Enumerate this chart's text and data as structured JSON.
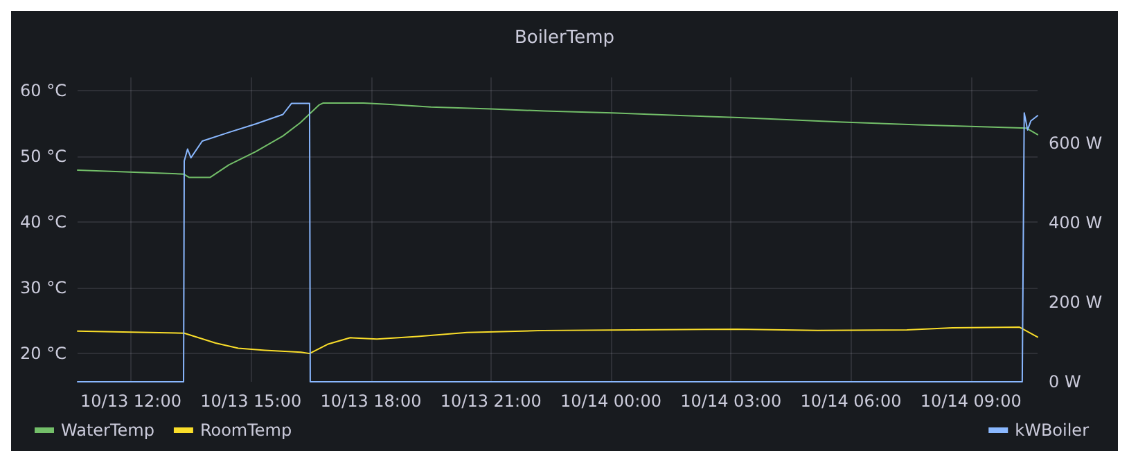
{
  "chart_data": {
    "type": "line",
    "title": "BoilerTemp",
    "xlim": [
      "--10-13T10:40",
      "--10-14T10:40"
    ],
    "xticks": [
      {
        "value": "--10-13T12:00",
        "label": "10/13 12:00"
      },
      {
        "value": "--10-13T15:00",
        "label": "10/13 15:00"
      },
      {
        "value": "--10-13T18:00",
        "label": "10/13 18:00"
      },
      {
        "value": "--10-13T21:00",
        "label": "10/13 21:00"
      },
      {
        "value": "--10-14T00:00",
        "label": "10/14 00:00"
      },
      {
        "value": "--10-14T03:00",
        "label": "10/14 03:00"
      },
      {
        "value": "--10-14T06:00",
        "label": "10/14 06:00"
      },
      {
        "value": "--10-14T09:00",
        "label": "10/14 09:00"
      }
    ],
    "ylim": [
      15.7,
      62
    ],
    "yticks": [
      {
        "value": 20,
        "label": "20 °C"
      },
      {
        "value": 30,
        "label": "30 °C"
      },
      {
        "value": 40,
        "label": "40 °C"
      },
      {
        "value": 50,
        "label": "50 °C"
      },
      {
        "value": 60,
        "label": "60 °C"
      }
    ],
    "y2lim": [
      0,
      765
    ],
    "y2ticks": [
      {
        "value": 0,
        "label": "0 W"
      },
      {
        "value": 200,
        "label": "200 W"
      },
      {
        "value": 400,
        "label": "400 W"
      },
      {
        "value": 600,
        "label": "600 W"
      }
    ],
    "grid": true,
    "legend": "bottom",
    "marker": "none",
    "line_style": "solid",
    "series": [
      {
        "name": "WaterTemp",
        "color": "#73bf69",
        "x": [
          "--10-13T10:40",
          "--10-13T12:26",
          "--10-13T13:19",
          "--10-13T13:27",
          "--10-13T13:59",
          "--10-13T14:27",
          "--10-13T15:07",
          "--10-13T15:48",
          "--10-13T16:14",
          "--10-13T16:42",
          "--10-13T16:48",
          "--10-13T17:49",
          "--10-13T18:29",
          "--10-13T19:30",
          "--10-13T21:00",
          "--10-13T22:21",
          "--10-14T00:02",
          "--10-14T01:44",
          "--10-14T03:12",
          "--10-14T05:47",
          "--10-14T07:41",
          "--10-14T09:16",
          "--10-14T10:23",
          "--10-14T10:40"
        ],
        "values": [
          47.9,
          47.5,
          47.3,
          46.8,
          46.8,
          48.7,
          50.7,
          53.1,
          55.1,
          57.8,
          58.1,
          58.1,
          57.9,
          57.5,
          57.2,
          56.9,
          56.6,
          56.2,
          55.9,
          55.2,
          54.8,
          54.5,
          54.3,
          53.3
        ]
      },
      {
        "name": "RoomTemp",
        "color": "#fade2a",
        "x": [
          "--10-13T10:40",
          "--10-13T13:20",
          "--10-13T14:07",
          "--10-13T14:41",
          "--10-13T15:21",
          "--10-13T16:15",
          "--10-13T16:28",
          "--10-13T16:55",
          "--10-13T17:29",
          "--10-13T18:09",
          "--10-13T19:10",
          "--10-13T20:24",
          "--10-13T22:18",
          "--10-14T00:34",
          "--10-14T03:09",
          "--10-14T05:10",
          "--10-14T07:24",
          "--10-14T08:32",
          "--10-14T10:13",
          "--10-14T10:40"
        ],
        "values": [
          23.4,
          23.1,
          21.6,
          20.8,
          20.5,
          20.2,
          20.0,
          21.4,
          22.4,
          22.2,
          22.6,
          23.2,
          23.5,
          23.6,
          23.7,
          23.5,
          23.6,
          23.9,
          24.0,
          22.5
        ]
      },
      {
        "name": "kWBoiler",
        "color": "#8ab8ff",
        "axis": "y2",
        "x": [
          "--10-13T10:40",
          "--10-13T13:19",
          "--10-13T13:20",
          "--10-13T13:25",
          "--10-13T13:30",
          "--10-13T13:47",
          "--10-13T14:27",
          "--10-13T15:07",
          "--10-13T15:48",
          "--10-13T16:01",
          "--10-13T16:28",
          "--10-13T16:29",
          "--10-14T10:17",
          "--10-14T10:20",
          "--10-14T10:25",
          "--10-14T10:30",
          "--10-14T10:40"
        ],
        "values": [
          0,
          0,
          555,
          585,
          563,
          605,
          627,
          648,
          672,
          700,
          700,
          0,
          0,
          676,
          633,
          656,
          669
        ]
      }
    ]
  }
}
